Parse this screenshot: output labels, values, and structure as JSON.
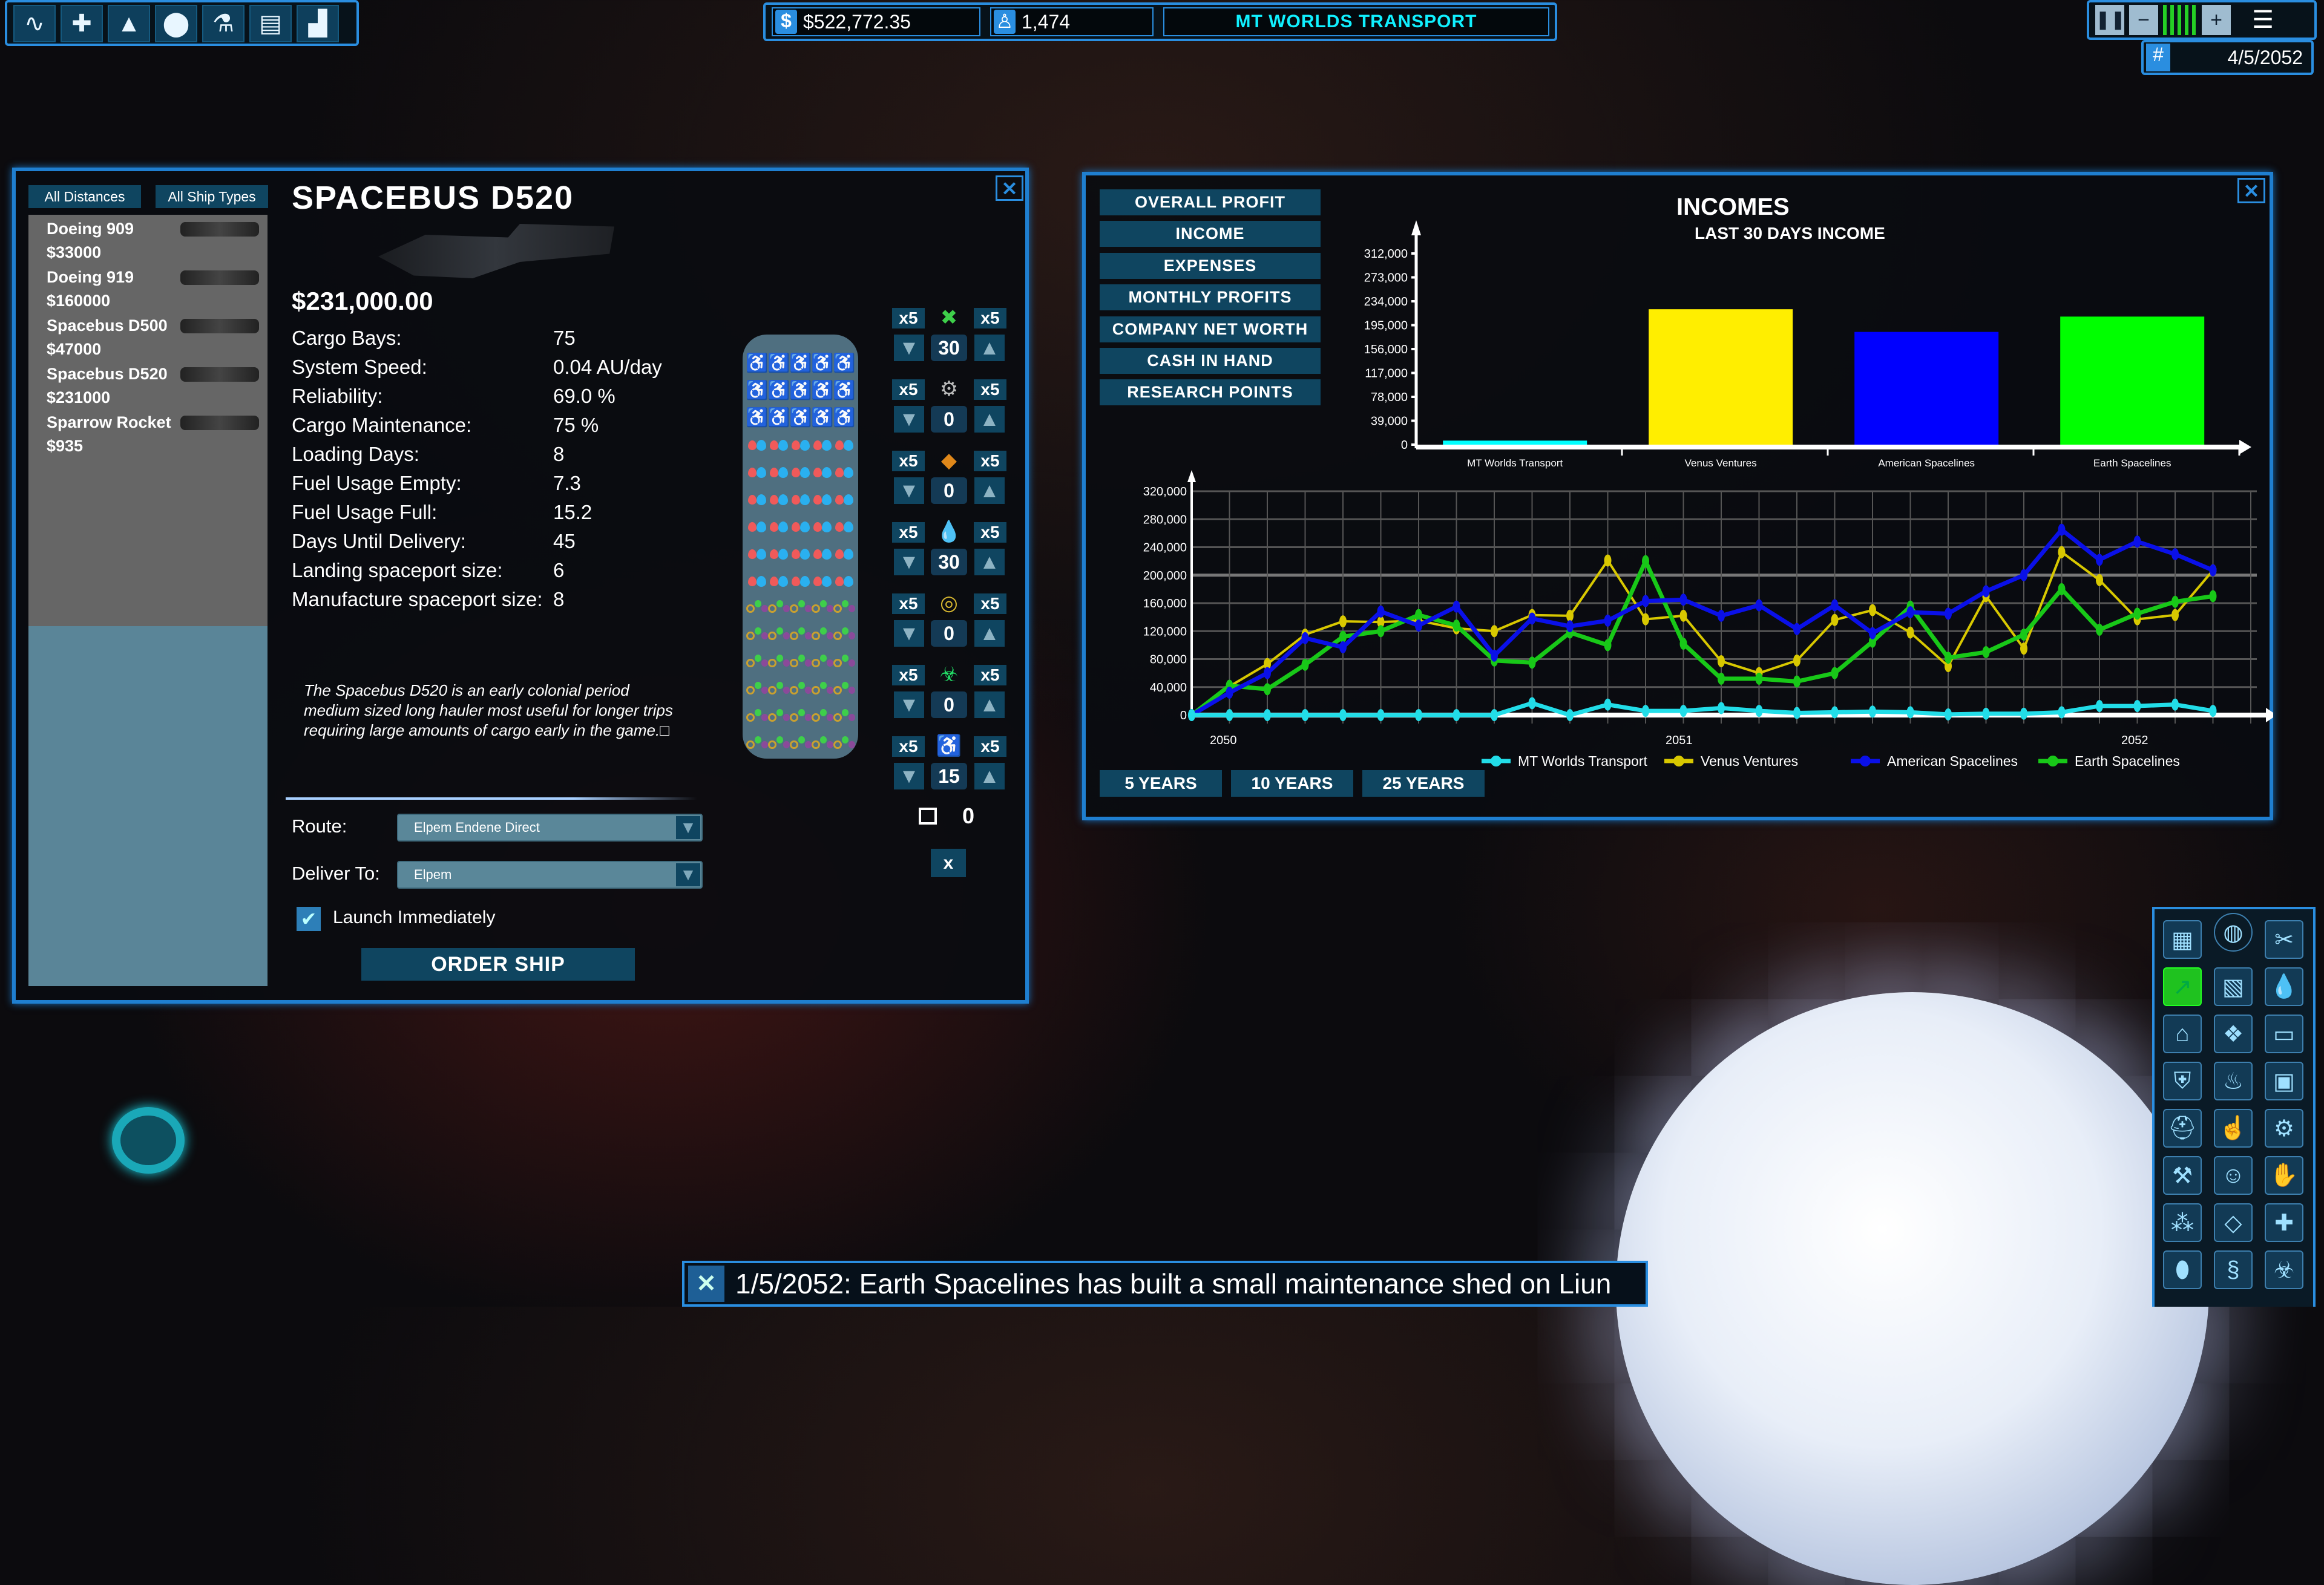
{
  "topbar": {
    "tools": [
      {
        "icon": "route-icon",
        "glyph": "∿"
      },
      {
        "icon": "add-ship-icon",
        "glyph": "✚"
      },
      {
        "icon": "rocket-icon",
        "glyph": "▲"
      },
      {
        "icon": "location-pin-icon",
        "glyph": "⬤"
      },
      {
        "icon": "flask-icon",
        "glyph": "⚗"
      },
      {
        "icon": "report-icon",
        "glyph": "▤"
      },
      {
        "icon": "stats-chart-icon",
        "glyph": "▟"
      }
    ],
    "money": "$522,772.35",
    "population": "1,474",
    "company": "MT WORLDS TRANSPORT",
    "date": "4/5/2052",
    "speed_level": "4"
  },
  "ship_panel": {
    "filters": [
      "All Distances",
      "All Ship Types"
    ],
    "ships": [
      {
        "name": "Doeing 909",
        "price": "$33000"
      },
      {
        "name": "Doeing 919",
        "price": "$160000"
      },
      {
        "name": "Spacebus D500",
        "price": "$47000"
      },
      {
        "name": "Spacebus D520",
        "price": "$231000"
      },
      {
        "name": "Sparrow Rocket",
        "price": "$935"
      }
    ],
    "title": "SPACEBUS D520",
    "price": "$231,000.00",
    "stats": [
      {
        "label": "Cargo Bays:",
        "value": "75"
      },
      {
        "label": "System Speed:",
        "value": "0.04 AU/day"
      },
      {
        "label": "Reliability:",
        "value": "69.0 %"
      },
      {
        "label": "Cargo Maintenance:",
        "value": "75 %"
      },
      {
        "label": "Loading Days:",
        "value": "8"
      },
      {
        "label": "Fuel Usage Empty:",
        "value": "7.3"
      },
      {
        "label": "Fuel Usage Full:",
        "value": " 15.2"
      },
      {
        "label": "Days Until Delivery:",
        "value": "45"
      },
      {
        "label": "Landing spaceport size:",
        "value": "6"
      },
      {
        "label": "Manufacture spaceport size:",
        "value": "8"
      }
    ],
    "description": "The Spacebus D520 is an early colonial period medium sized long hauler most useful for longer trips requiring large amounts of cargo early in the game.□",
    "cargo_grid": {
      "passengers": 15,
      "liquids": 30,
      "goods": 30
    },
    "cargo_controls": [
      {
        "icon": "goods-icon",
        "glyph": "✖",
        "color": "#3ecf4a",
        "x5": "x5",
        "value": "30"
      },
      {
        "icon": "machinery-icon",
        "glyph": "⚙",
        "color": "#bbbbbb",
        "x5": "x5",
        "value": "0"
      },
      {
        "icon": "minerals-icon",
        "glyph": "◆",
        "color": "#e0881a",
        "x5": "x5",
        "value": "0"
      },
      {
        "icon": "liquids-icon",
        "glyph": "💧",
        "color": "#3ab0f0",
        "x5": "x5",
        "value": "30"
      },
      {
        "icon": "luxury-icon",
        "glyph": "◎",
        "color": "#d8b830",
        "x5": "x5",
        "value": "0"
      },
      {
        "icon": "hazardous-icon",
        "glyph": "☣",
        "color": "#22dd66",
        "x5": "x5",
        "value": "0"
      },
      {
        "icon": "passenger-icon",
        "glyph": "♿",
        "color": "#ffffff",
        "x5": "x5",
        "value": "15"
      }
    ],
    "empty_count": "0",
    "clear_label": "x",
    "route_label": "Route:",
    "route_value": "Elpem Endene Direct",
    "deliver_label": "Deliver To:",
    "deliver_value": "Elpem",
    "launch_label": "Launch Immediately",
    "launch_checked": true,
    "order_label": "ORDER SHIP",
    "close": "✕"
  },
  "stats_panel": {
    "menu": [
      "OVERALL PROFIT",
      "INCOME",
      "EXPENSES",
      "MONTHLY PROFITS",
      "COMPANY NET WORTH",
      "CASH IN HAND",
      "RESEARCH POINTS"
    ],
    "title": "INCOMES",
    "subtitle": "LAST 30 DAYS INCOME",
    "range_buttons": [
      "5 YEARS",
      "10 YEARS",
      "25 YEARS"
    ],
    "close": "✕"
  },
  "chart_data": [
    {
      "type": "bar",
      "title": "LAST 30 DAYS INCOME",
      "categories": [
        "MT Worlds Transport",
        "Venus Ventures",
        "American Spacelines",
        "Earth Spacelines"
      ],
      "values": [
        6600,
        221000,
        184000,
        209000
      ],
      "colors": [
        "#00ffff",
        "#ffee00",
        "#0000ff",
        "#00ff00"
      ],
      "yticks": [
        "0",
        "39,000",
        "78,000",
        "117,000",
        "156,000",
        "195,000",
        "234,000",
        "273,000",
        "312,000"
      ],
      "ylim": [
        0,
        312000
      ],
      "grid": false
    },
    {
      "type": "line",
      "xticks": [
        "2050",
        "2051",
        "2052"
      ],
      "ylim": [
        0,
        320000
      ],
      "grid": true,
      "legend": "bottom",
      "yticks": [
        "0",
        "40,000",
        "80,000",
        "120,000",
        "160,000",
        "200,000",
        "240,000",
        "280,000",
        "320,000"
      ],
      "series": [
        {
          "name": "MT Worlds Transport",
          "color": "#22dde8",
          "values": [
            0,
            0,
            0,
            0,
            0,
            0,
            0,
            0,
            0,
            17000,
            0,
            15000,
            6000,
            6000,
            10000,
            6000,
            3000,
            4000,
            5000,
            4000,
            1000,
            2000,
            2000,
            4000,
            13000,
            13000,
            15000,
            6000
          ]
        },
        {
          "name": "Venus Ventures",
          "color": "#d8c800",
          "values": [
            0,
            41000,
            73000,
            115000,
            134000,
            133000,
            135000,
            124000,
            120000,
            143000,
            142000,
            221000,
            137000,
            142000,
            77000,
            60000,
            78000,
            136000,
            150000,
            118000,
            70000,
            170000,
            95000,
            233000,
            193000,
            137000,
            143000,
            207000
          ]
        },
        {
          "name": "American Spacelines",
          "color": "#0a10e8",
          "values": [
            0,
            32000,
            60000,
            110000,
            97000,
            148000,
            128000,
            155000,
            85000,
            138000,
            127000,
            135000,
            163000,
            165000,
            142000,
            157000,
            123000,
            157000,
            117000,
            147000,
            145000,
            177000,
            200000,
            265000,
            222000,
            248000,
            230000,
            207000
          ]
        },
        {
          "name": "Earth Spacelines",
          "color": "#18c818",
          "values": [
            0,
            42000,
            37000,
            72000,
            112000,
            120000,
            143000,
            128000,
            78000,
            75000,
            118000,
            100000,
            220000,
            102000,
            52000,
            52000,
            48000,
            60000,
            105000,
            155000,
            82000,
            90000,
            115000,
            180000,
            122000,
            145000,
            162000,
            170000
          ]
        }
      ]
    }
  ],
  "quick_panel": {
    "icons": [
      "hotel-icon",
      "globe-icon",
      "food-icon",
      "workforce-growth-icon",
      "ore-icon",
      "water-icon",
      "habitat-icon",
      "crystals-icon",
      "market-basket-icon",
      "shield-icon",
      "fire-crystal-icon",
      "crate-icon",
      "construction-helmet-icon",
      "worker-icon",
      "gears-icon",
      "robot-arm-icon",
      "astronaut-icon",
      "handshake-icon",
      "molecule-icon",
      "jewelry-icon",
      "medicine-icon",
      "bomb-icon",
      "dna-icon",
      "biohazard-icon"
    ],
    "glyphs": [
      "▦",
      "◍",
      "✂",
      "↗",
      "▧",
      "💧",
      "⌂",
      "❖",
      "▭",
      "⛨",
      "♨",
      "▣",
      "⛑",
      "☝",
      "⚙",
      "⚒",
      "☺",
      "✋",
      "⁂",
      "◇",
      "✚",
      "⬮",
      "§",
      "☣"
    ],
    "active": "workforce-growth-icon"
  },
  "notification": {
    "text": "1/5/2052: Earth Spacelines has built a small maintenance shed on Liun",
    "close": "✕"
  }
}
